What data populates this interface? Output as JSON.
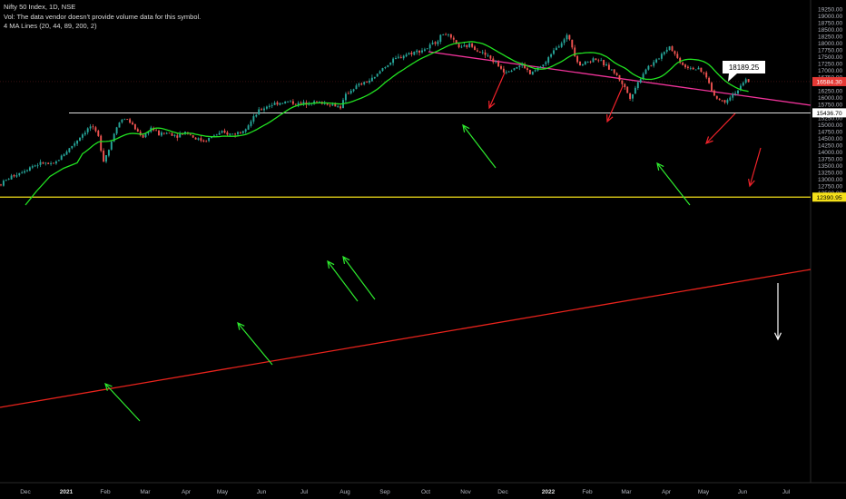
{
  "legend": {
    "line1": "Nifty 50 Index, 1D, NSE",
    "line2": "Vol: The data vendor doesn't provide volume data for this symbol.",
    "line3": "4 MA Lines (20, 44, 89, 200, 2)"
  },
  "chart_data": {
    "type": "candlestick",
    "y_axis": {
      "min": 12250,
      "max": 19250,
      "step": 250,
      "ticks": [
        "12500.00",
        "12750.00",
        "13000.00",
        "13250.00",
        "13500.00",
        "13750.00",
        "14000.00",
        "14250.00",
        "14500.00",
        "14750.00",
        "15000.00",
        "15250.00",
        "15500.00",
        "15750.00",
        "16000.00",
        "16250.00",
        "16500.00",
        "16750.00",
        "17000.00",
        "17250.00",
        "17500.00",
        "17750.00",
        "18000.00",
        "18250.00",
        "18500.00",
        "18750.00",
        "19000.00",
        "19250.00"
      ]
    },
    "x_axis": {
      "labels": [
        "Dec",
        "2021",
        "Feb",
        "Mar",
        "Apr",
        "May",
        "Jun",
        "Jul",
        "Aug",
        "Sep",
        "Oct",
        "Nov",
        "Dec",
        "2022",
        "Feb",
        "Mar",
        "Apr",
        "May",
        "Jun",
        "Jul"
      ],
      "bold_labels": [
        "2021",
        "2022"
      ]
    },
    "price_labels": [
      {
        "text": "16584.30",
        "value": 16584.3,
        "color": "#e53935"
      },
      {
        "text": "15436.70",
        "value": 15436.7,
        "color": "#ffffff"
      },
      {
        "text": "12390.95",
        "value": 12390.95,
        "color": "#f5e11a"
      }
    ],
    "callout": {
      "text": "18189.25",
      "value": 18189.25
    },
    "lines": {
      "horizontal_support": 15436.7,
      "bottom_line": 12390.95,
      "rising_trendline_color": "#e8231c",
      "falling_trendline_color": "#f0339a",
      "ma_color": "#21e221"
    },
    "colors": {
      "up": "#26a69a",
      "down": "#ef5350",
      "arrows_up": "#2eea2e",
      "arrows_down": "#f0222a",
      "background": "#000000"
    }
  }
}
